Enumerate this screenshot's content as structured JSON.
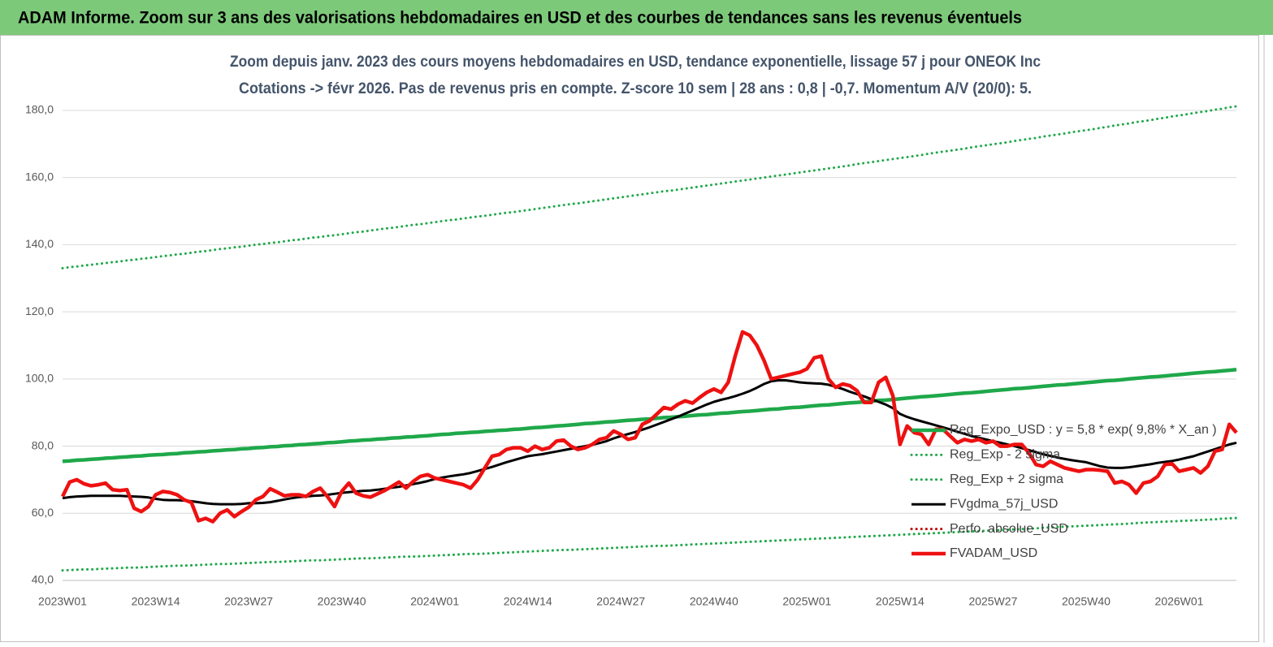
{
  "banner": {
    "title": "ADAM Informe. Zoom sur 3 ans des valorisations hebdomadaires en USD et des courbes de tendances sans les revenus éventuels"
  },
  "chart_data": {
    "type": "line",
    "title": "Zoom depuis janv. 2023 des cours moyens hebdomadaires en USD, tendance exponentielle, lissage 57 j pour ONEOK Inc",
    "subtitle": "Cotations -> févr 2026.  Pas de revenus pris en compte. Z-score 10 sem  | 28 ans : 0,8 | -0,7. Momentum A/V (20/0): 5.",
    "categories": [
      "2023W01",
      null,
      null,
      null,
      null,
      null,
      null,
      null,
      null,
      null,
      null,
      null,
      null,
      "2023W14",
      null,
      null,
      null,
      null,
      null,
      null,
      null,
      null,
      null,
      null,
      null,
      null,
      "2023W27",
      null,
      null,
      null,
      null,
      null,
      null,
      null,
      null,
      null,
      null,
      null,
      null,
      "2023W40",
      null,
      null,
      null,
      null,
      null,
      null,
      null,
      null,
      null,
      null,
      null,
      null,
      "2024W01",
      null,
      null,
      null,
      null,
      null,
      null,
      null,
      null,
      null,
      null,
      null,
      null,
      "2024W14",
      null,
      null,
      null,
      null,
      null,
      null,
      null,
      null,
      null,
      null,
      null,
      null,
      "2024W27",
      null,
      null,
      null,
      null,
      null,
      null,
      null,
      null,
      null,
      null,
      null,
      null,
      "2024W40",
      null,
      null,
      null,
      null,
      null,
      null,
      null,
      null,
      null,
      null,
      null,
      null,
      "2025W01",
      null,
      null,
      null,
      null,
      null,
      null,
      null,
      null,
      null,
      null,
      null,
      null,
      "2025W14",
      null,
      null,
      null,
      null,
      null,
      null,
      null,
      null,
      null,
      null,
      null,
      null,
      "2025W27",
      null,
      null,
      null,
      null,
      null,
      null,
      null,
      null,
      null,
      null,
      null,
      null,
      "2025W40",
      null,
      null,
      null,
      null,
      null,
      null,
      null,
      null,
      null,
      null,
      null,
      null,
      "2026W01",
      null,
      null,
      null,
      null,
      null,
      null,
      null,
      null
    ],
    "ylim": [
      40,
      190
    ],
    "yticks": [
      {
        "value": 40,
        "label": "40,0"
      },
      {
        "value": 60,
        "label": "60,0"
      },
      {
        "value": 80,
        "label": "80,0"
      },
      {
        "value": 100,
        "label": "100,0"
      },
      {
        "value": 120,
        "label": "120,0"
      },
      {
        "value": 140,
        "label": "140,0"
      },
      {
        "value": 160,
        "label": "160,0"
      },
      {
        "value": 180,
        "label": "180,0"
      }
    ],
    "grid": true,
    "legend": "right",
    "series": [
      {
        "name": "Reg_Expo_USD : y = 5,8 * exp( 9,8% * X_an )",
        "color": "#1fa84a",
        "style": "solid",
        "values": [
          75.5,
          75.6,
          75.8,
          75.9,
          76.1,
          76.2,
          76.4,
          76.5,
          76.7,
          76.8,
          77.0,
          77.1,
          77.3,
          77.4,
          77.5,
          77.7,
          77.8,
          78.0,
          78.1,
          78.3,
          78.4,
          78.6,
          78.7,
          78.9,
          79.0,
          79.2,
          79.3,
          79.5,
          79.6,
          79.8,
          79.9,
          80.1,
          80.2,
          80.4,
          80.5,
          80.7,
          80.8,
          81.0,
          81.1,
          81.3,
          81.5,
          81.6,
          81.8,
          81.9,
          82.1,
          82.2,
          82.4,
          82.5,
          82.7,
          82.8,
          83.0,
          83.1,
          83.3,
          83.5,
          83.6,
          83.8,
          83.9,
          84.1,
          84.2,
          84.4,
          84.5,
          84.7,
          84.8,
          85.0,
          85.1,
          85.3,
          85.5,
          85.6,
          85.8,
          86.0,
          86.1,
          86.3,
          86.5,
          86.7,
          86.8,
          87.0,
          87.2,
          87.3,
          87.5,
          87.7,
          87.8,
          88.0,
          88.1,
          88.3,
          88.5,
          88.6,
          88.8,
          88.9,
          89.1,
          89.3,
          89.4,
          89.6,
          89.8,
          89.9,
          90.1,
          90.3,
          90.4,
          90.6,
          90.8,
          91.0,
          91.1,
          91.3,
          91.5,
          91.6,
          91.8,
          92.0,
          92.2,
          92.3,
          92.5,
          92.7,
          92.9,
          93.0,
          93.2,
          93.4,
          93.6,
          93.7,
          93.9,
          94.1,
          94.3,
          94.5,
          94.7,
          94.8,
          95.0,
          95.2,
          95.4,
          95.6,
          95.8,
          95.9,
          96.1,
          96.3,
          96.5,
          96.7,
          96.9,
          97.1,
          97.2,
          97.4,
          97.6,
          97.8,
          98.0,
          98.2,
          98.3,
          98.5,
          98.7,
          98.9,
          99.1,
          99.3,
          99.5,
          99.6,
          99.8,
          100.0,
          100.2,
          100.4,
          100.6,
          100.7,
          100.9,
          101.1,
          101.3,
          101.5,
          101.7,
          101.9,
          102.1,
          102.2,
          102.4,
          102.6,
          102.8
        ]
      },
      {
        "name": "Reg_Exp - 2 sigma",
        "color": "#1fa84a",
        "style": "dotted",
        "values": [
          43.0,
          43.1,
          43.2,
          43.3,
          43.3,
          43.4,
          43.5,
          43.6,
          43.7,
          43.8,
          43.8,
          43.9,
          44.0,
          44.1,
          44.2,
          44.3,
          44.4,
          44.4,
          44.5,
          44.6,
          44.7,
          44.8,
          44.9,
          44.9,
          45.0,
          45.1,
          45.2,
          45.3,
          45.4,
          45.5,
          45.5,
          45.6,
          45.7,
          45.8,
          45.9,
          46.0,
          46.0,
          46.1,
          46.2,
          46.3,
          46.4,
          46.5,
          46.6,
          46.6,
          46.7,
          46.8,
          46.9,
          47.0,
          47.1,
          47.1,
          47.2,
          47.3,
          47.4,
          47.5,
          47.6,
          47.7,
          47.8,
          47.9,
          47.9,
          48.0,
          48.1,
          48.2,
          48.3,
          48.4,
          48.5,
          48.6,
          48.7,
          48.8,
          48.9,
          49.0,
          49.1,
          49.1,
          49.2,
          49.3,
          49.4,
          49.5,
          49.6,
          49.7,
          49.8,
          49.9,
          50.0,
          50.1,
          50.2,
          50.3,
          50.3,
          50.4,
          50.5,
          50.6,
          50.7,
          50.8,
          50.9,
          51.0,
          51.1,
          51.2,
          51.3,
          51.4,
          51.5,
          51.6,
          51.7,
          51.8,
          51.9,
          52.0,
          52.1,
          52.2,
          52.3,
          52.4,
          52.5,
          52.6,
          52.7,
          52.8,
          52.9,
          53.0,
          53.1,
          53.2,
          53.3,
          53.4,
          53.5,
          53.6,
          53.7,
          53.8,
          53.9,
          54.0,
          54.1,
          54.2,
          54.3,
          54.4,
          54.5,
          54.6,
          54.7,
          54.8,
          54.9,
          55.0,
          55.1,
          55.2,
          55.3,
          55.4,
          55.5,
          55.7,
          55.8,
          55.9,
          56.0,
          56.1,
          56.2,
          56.3,
          56.4,
          56.5,
          56.6,
          56.7,
          56.8,
          56.9,
          57.1,
          57.2,
          57.3,
          57.4,
          57.5,
          57.6,
          57.7,
          57.8,
          57.9,
          58.0,
          58.1,
          58.2,
          58.4,
          58.5,
          58.6
        ]
      },
      {
        "name": "Reg_Exp + 2 sigma",
        "color": "#1fa84a",
        "style": "dotted",
        "values": [
          133.0,
          133.3,
          133.5,
          133.8,
          134.0,
          134.3,
          134.5,
          134.8,
          135.0,
          135.3,
          135.5,
          135.8,
          136.0,
          136.3,
          136.6,
          136.8,
          137.1,
          137.3,
          137.6,
          137.9,
          138.1,
          138.4,
          138.7,
          138.9,
          139.2,
          139.4,
          139.7,
          140.0,
          140.2,
          140.5,
          140.7,
          141.0,
          141.3,
          141.5,
          141.8,
          142.1,
          142.3,
          142.6,
          142.8,
          143.1,
          143.4,
          143.7,
          143.9,
          144.2,
          144.5,
          144.8,
          145.0,
          145.3,
          145.6,
          145.9,
          146.1,
          146.4,
          146.7,
          147.0,
          147.3,
          147.5,
          147.8,
          148.1,
          148.4,
          148.6,
          148.9,
          149.2,
          149.5,
          149.7,
          150.0,
          150.3,
          150.6,
          150.9,
          151.2,
          151.5,
          151.8,
          152.1,
          152.3,
          152.6,
          152.9,
          153.2,
          153.5,
          153.8,
          154.1,
          154.4,
          154.7,
          155.0,
          155.3,
          155.6,
          155.9,
          156.1,
          156.4,
          156.7,
          157.0,
          157.3,
          157.6,
          157.9,
          158.2,
          158.5,
          158.8,
          159.1,
          159.4,
          159.7,
          160.0,
          160.3,
          160.6,
          160.9,
          161.2,
          161.5,
          161.8,
          162.1,
          162.4,
          162.7,
          163.0,
          163.3,
          163.6,
          164.0,
          164.3,
          164.6,
          164.9,
          165.2,
          165.5,
          165.8,
          166.1,
          166.4,
          166.7,
          167.1,
          167.4,
          167.7,
          168.0,
          168.3,
          168.6,
          169.0,
          169.3,
          169.6,
          169.9,
          170.2,
          170.5,
          170.9,
          171.2,
          171.5,
          171.8,
          172.2,
          172.5,
          172.8,
          173.1,
          173.5,
          173.8,
          174.1,
          174.4,
          174.8,
          175.1,
          175.5,
          175.8,
          176.1,
          176.5,
          176.8,
          177.1,
          177.5,
          177.8,
          178.2,
          178.5,
          178.8,
          179.2,
          179.5,
          179.8,
          180.2,
          180.5,
          180.9,
          181.2
        ]
      },
      {
        "name": "FVgdma_57j_USD",
        "color": "#000000",
        "style": "solid",
        "values": [
          64.5,
          64.8,
          65.0,
          65.1,
          65.2,
          65.2,
          65.2,
          65.2,
          65.2,
          65.1,
          65.0,
          64.9,
          64.7,
          64.3,
          64.0,
          63.9,
          63.9,
          63.8,
          63.6,
          63.3,
          63.0,
          62.8,
          62.7,
          62.7,
          62.7,
          62.8,
          63.0,
          63.0,
          63.1,
          63.3,
          63.7,
          64.1,
          64.5,
          64.8,
          65.0,
          65.2,
          65.3,
          65.5,
          65.8,
          66.1,
          66.3,
          66.5,
          66.7,
          66.8,
          67.0,
          67.3,
          67.6,
          67.9,
          68.3,
          68.7,
          69.1,
          69.6,
          70.2,
          70.6,
          71.0,
          71.3,
          71.6,
          72.0,
          72.6,
          73.2,
          73.8,
          74.5,
          75.2,
          75.8,
          76.4,
          77.0,
          77.3,
          77.6,
          78.0,
          78.4,
          78.8,
          79.2,
          79.6,
          80.0,
          80.4,
          80.9,
          81.5,
          82.3,
          83.0,
          83.6,
          84.2,
          84.9,
          85.6,
          86.4,
          87.2,
          88.0,
          88.8,
          89.7,
          90.6,
          91.5,
          92.4,
          93.2,
          93.8,
          94.3,
          94.9,
          95.6,
          96.4,
          97.4,
          98.5,
          99.3,
          99.6,
          99.6,
          99.3,
          99.0,
          98.8,
          98.7,
          98.6,
          98.3,
          97.7,
          97.0,
          96.2,
          95.5,
          94.8,
          94.0,
          93.2,
          92.4,
          91.3,
          89.6,
          88.7,
          88.0,
          87.4,
          86.8,
          86.2,
          85.6,
          85.0,
          84.3,
          83.7,
          83.0,
          82.5,
          82.0,
          81.5,
          81.0,
          80.5,
          80.0,
          79.4,
          78.8,
          78.2,
          77.6,
          77.1,
          76.6,
          76.2,
          75.8,
          75.5,
          75.2,
          74.6,
          74.0,
          73.6,
          73.5,
          73.5,
          73.7,
          74.0,
          74.3,
          74.6,
          75.0,
          75.3,
          75.6,
          76.0,
          76.5,
          77.0,
          77.7,
          78.4,
          79.1,
          79.8,
          80.5,
          81.0
        ]
      },
      {
        "name": "Perfo. absolue_USD",
        "color": "#c00000",
        "style": "dotted",
        "values": [
          null,
          null,
          null,
          null,
          null,
          null,
          null,
          null,
          null,
          null,
          null,
          null,
          null,
          null,
          null,
          null,
          null,
          null,
          null,
          null,
          null,
          null,
          null,
          null,
          null,
          null,
          null,
          null,
          null,
          null,
          null,
          null,
          null,
          null,
          null,
          null,
          null,
          null,
          null,
          null,
          null,
          null,
          null,
          null,
          null,
          null,
          null,
          null,
          null,
          null,
          null,
          null,
          null,
          null,
          null,
          null,
          null,
          null,
          null,
          null,
          null,
          null,
          null,
          null,
          null,
          null,
          null,
          null,
          null,
          null,
          null,
          null,
          null,
          null,
          null,
          null,
          null,
          null,
          null,
          null,
          null,
          null,
          null,
          null,
          null,
          null,
          null,
          null,
          null,
          null,
          null,
          null,
          null,
          null,
          null,
          null,
          null,
          null,
          null,
          null,
          null,
          null,
          null,
          null,
          null,
          null,
          null,
          null,
          null,
          null,
          null,
          null,
          null,
          null,
          null,
          null,
          null,
          null,
          null,
          null,
          null,
          null,
          null,
          null,
          null,
          null,
          null,
          null,
          null,
          null,
          null,
          null,
          null,
          null,
          null,
          null,
          null,
          null,
          null,
          null,
          null,
          null,
          null,
          null,
          null,
          null,
          null,
          null,
          null,
          null,
          null,
          null,
          null,
          null,
          null,
          null,
          null,
          null,
          null,
          null,
          null,
          null,
          null,
          null,
          null
        ]
      },
      {
        "name": "FVADAM_USD",
        "color": "#ee1111",
        "style": "solid",
        "values": [
          65,
          69.3,
          70,
          68.8,
          68.2,
          68.5,
          69,
          67,
          66.8,
          67,
          61.5,
          60.5,
          62,
          65.5,
          66.5,
          66.2,
          65.5,
          64,
          63.2,
          57.8,
          58.5,
          57.5,
          60,
          61,
          59,
          60.5,
          61.8,
          64,
          65,
          67.3,
          66.3,
          65.2,
          65.5,
          65.5,
          65,
          66.5,
          67.5,
          65,
          62,
          66.5,
          69,
          66,
          65.2,
          64.8,
          65.8,
          66.8,
          68,
          69.3,
          67.5,
          69.5,
          71,
          71.5,
          70.5,
          70,
          69.5,
          69,
          68.5,
          67.5,
          70,
          73.5,
          77,
          77.5,
          79,
          79.5,
          79.5,
          78.5,
          80,
          79,
          79.5,
          81.5,
          81.8,
          80,
          79,
          79.5,
          80.5,
          82,
          82.5,
          84.5,
          83.5,
          82,
          82.5,
          86.5,
          87.5,
          89.5,
          91.5,
          91,
          92.5,
          93.5,
          92.8,
          94.5,
          96,
          97,
          96,
          99,
          107,
          114,
          113,
          110,
          105.5,
          100,
          100.5,
          101,
          101.5,
          102,
          103,
          106.3,
          106.8,
          100,
          97.5,
          98.5,
          98,
          96.5,
          93,
          93,
          99,
          100.5,
          95,
          80.5,
          86,
          84,
          83.5,
          80.5,
          85,
          85,
          83,
          81,
          82,
          81.5,
          82,
          81,
          81.5,
          80,
          80,
          80.5,
          80.5,
          78,
          74.5,
          74,
          75.5,
          74.5,
          73.5,
          73,
          72.5,
          73,
          73,
          72.8,
          72.5,
          69,
          69.5,
          68.5,
          66,
          69,
          69.5,
          71,
          74.5,
          74.8,
          72.5,
          73,
          73.5,
          72,
          74,
          78.5,
          79,
          86.5,
          84
        ]
      }
    ]
  }
}
